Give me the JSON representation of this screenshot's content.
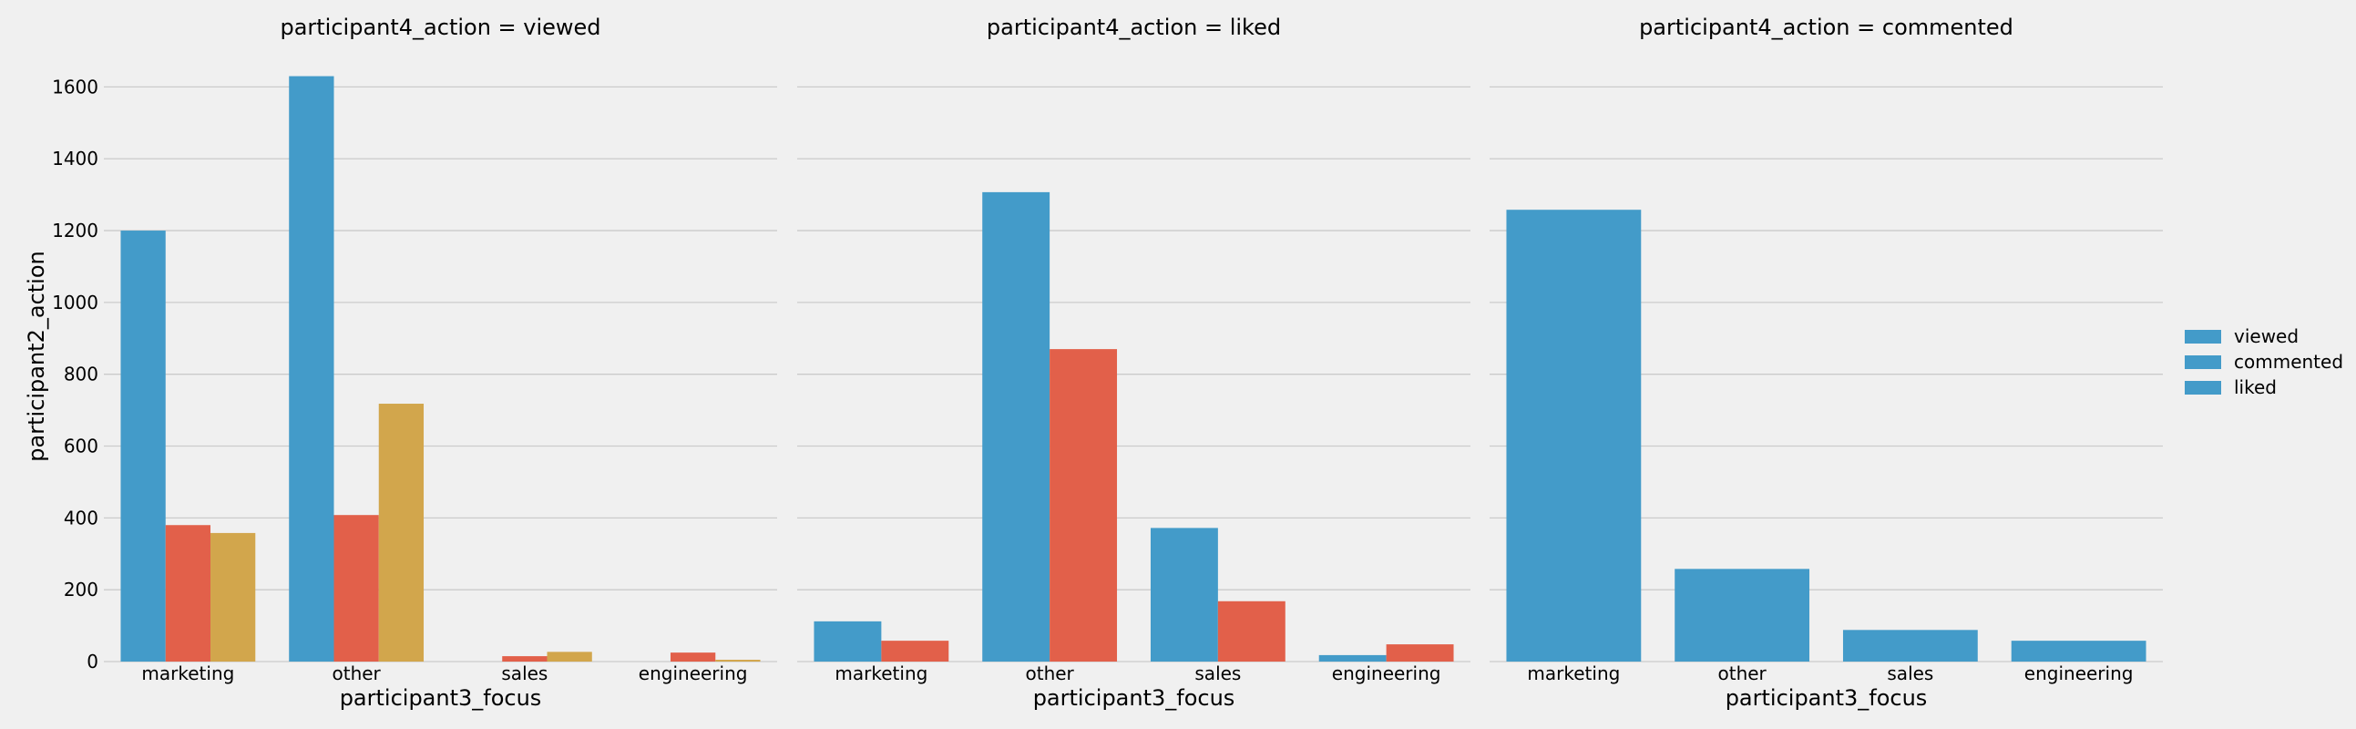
{
  "chart_data": {
    "type": "bar",
    "ylabel": "participant2_action",
    "ylim": [
      0,
      1700
    ],
    "yticks": [
      0,
      200,
      400,
      600,
      800,
      1000,
      1200,
      1400,
      1600
    ],
    "grid": true,
    "legend": {
      "placement": "right",
      "entries": [
        "viewed",
        "commented",
        "liked"
      ]
    },
    "colors": {
      "viewed": "#439bc9",
      "commented": "#e2604a",
      "liked": "#d2a64c",
      "background": "#f0f0f0",
      "grid": "#cbcbcb"
    },
    "panels": [
      {
        "title": "participant4_action = viewed",
        "xlabel": "participant3_focus",
        "categories": [
          "marketing",
          "other",
          "sales",
          "engineering"
        ],
        "series": [
          {
            "name": "viewed",
            "values": [
              1200,
              1630,
              0,
              0
            ]
          },
          {
            "name": "commented",
            "values": [
              380,
              408,
              15,
              25
            ]
          },
          {
            "name": "liked",
            "values": [
              358,
              718,
              27,
              5
            ]
          }
        ]
      },
      {
        "title": "participant4_action = liked",
        "xlabel": "participant3_focus",
        "categories": [
          "marketing",
          "other",
          "sales",
          "engineering"
        ],
        "series": [
          {
            "name": "viewed",
            "values": [
              112,
              1307,
              372,
              18
            ]
          },
          {
            "name": "commented",
            "values": [
              58,
              870,
              168,
              48
            ]
          }
        ]
      },
      {
        "title": "participant4_action = commented",
        "xlabel": "participant3_focus",
        "categories": [
          "marketing",
          "other",
          "sales",
          "engineering"
        ],
        "series": [
          {
            "name": "viewed",
            "values": [
              1258,
              258,
              88,
              58
            ]
          }
        ]
      }
    ]
  }
}
